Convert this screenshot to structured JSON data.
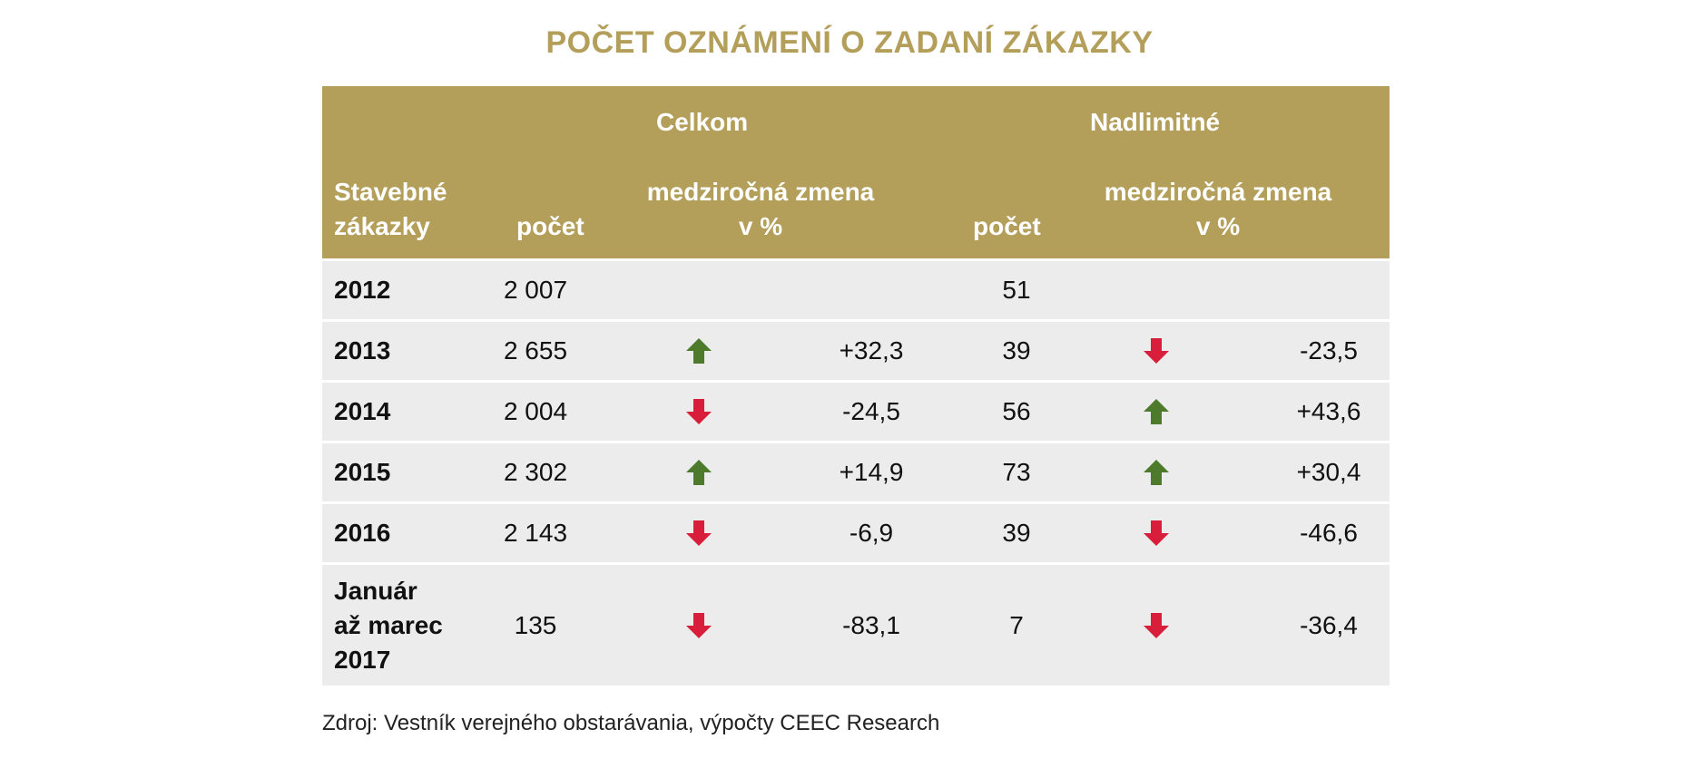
{
  "title": "POČET OZNÁMENÍ O ZADANÍ ZÁKAZKY",
  "header": {
    "group_celkom": "Celkom",
    "group_nadlimitne": "Nadlimitné",
    "col_stavebne_line1": "Stavebné",
    "col_stavebne_line2": "zákazky",
    "col_pocet": "počet",
    "col_zmena_line1": "medziročná zmena",
    "col_zmena_line2": "v %"
  },
  "colors": {
    "gold": "#b39e5a",
    "up": "#4e7a2b",
    "down": "#d81e3a",
    "row_bg": "#ececec"
  },
  "rows": [
    {
      "year": [
        "2012"
      ],
      "celkom_pocet": "2 007",
      "celkom_trend": "",
      "celkom_zmena": "",
      "nad_pocet": "51",
      "nad_trend": "",
      "nad_zmena": ""
    },
    {
      "year": [
        "2013"
      ],
      "celkom_pocet": "2 655",
      "celkom_trend": "up",
      "celkom_zmena": "+32,3",
      "nad_pocet": "39",
      "nad_trend": "down",
      "nad_zmena": "-23,5"
    },
    {
      "year": [
        "2014"
      ],
      "celkom_pocet": "2 004",
      "celkom_trend": "down",
      "celkom_zmena": "-24,5",
      "nad_pocet": "56",
      "nad_trend": "up",
      "nad_zmena": "+43,6"
    },
    {
      "year": [
        "2015"
      ],
      "celkom_pocet": "2 302",
      "celkom_trend": "up",
      "celkom_zmena": "+14,9",
      "nad_pocet": "73",
      "nad_trend": "up",
      "nad_zmena": "+30,4"
    },
    {
      "year": [
        "2016"
      ],
      "celkom_pocet": "2 143",
      "celkom_trend": "down",
      "celkom_zmena": "-6,9",
      "nad_pocet": "39",
      "nad_trend": "down",
      "nad_zmena": "-46,6"
    },
    {
      "year": [
        "Január",
        "až marec",
        "2017"
      ],
      "celkom_pocet": "135",
      "celkom_trend": "down",
      "celkom_zmena": "-83,1",
      "nad_pocet": "7",
      "nad_trend": "down",
      "nad_zmena": "-36,4"
    }
  ],
  "source": "Zdroj: Vestník verejného obstarávania, výpočty CEEC Research",
  "chart_data": {
    "type": "table",
    "title": "POČET OZNÁMENÍ O ZADANÍ ZÁKAZKY",
    "columns": [
      "Stavebné zákazky",
      "Celkom počet",
      "Celkom medziročná zmena v %",
      "Nadlimitné počet",
      "Nadlimitné medziročná zmena v %"
    ],
    "categories": [
      "2012",
      "2013",
      "2014",
      "2015",
      "2016",
      "Január až marec 2017"
    ],
    "series": [
      {
        "name": "Celkom počet",
        "values": [
          2007,
          2655,
          2004,
          2302,
          2143,
          135
        ]
      },
      {
        "name": "Celkom medziročná zmena v %",
        "values": [
          null,
          32.3,
          -24.5,
          14.9,
          -6.9,
          -83.1
        ]
      },
      {
        "name": "Nadlimitné počet",
        "values": [
          51,
          39,
          56,
          73,
          39,
          7
        ]
      },
      {
        "name": "Nadlimitné medziročná zmena v %",
        "values": [
          null,
          -23.5,
          43.6,
          30.4,
          -46.6,
          -36.4
        ]
      }
    ]
  }
}
